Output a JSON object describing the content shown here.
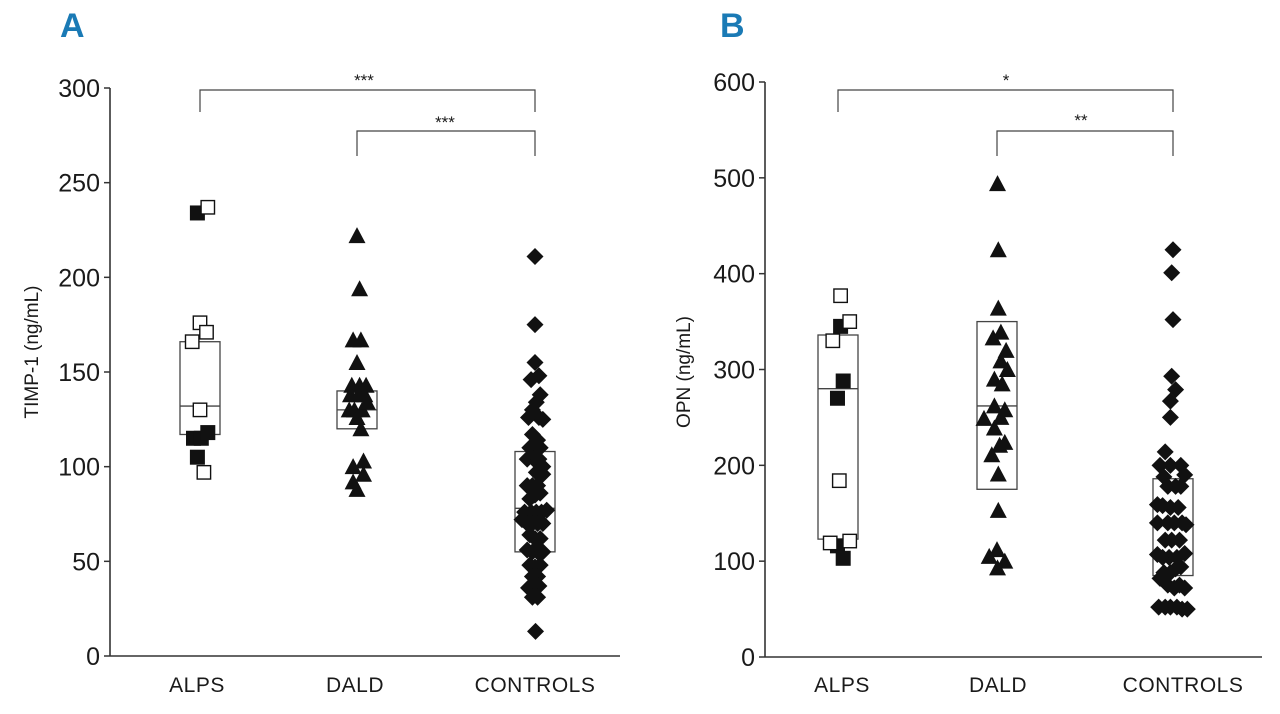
{
  "chart_data": [
    {
      "type": "scatter",
      "panel_label": "A",
      "ylabel": "TIMP-1 (ng/mL)",
      "ylim": [
        0,
        300
      ],
      "yticks": [
        "0",
        "50",
        "100",
        "150",
        "200",
        "250",
        "300"
      ],
      "categories": [
        "ALPS",
        "DALD",
        "CONTROLS"
      ],
      "boxes": [
        {
          "category": "ALPS",
          "low": 117,
          "median": 132,
          "high": 166
        },
        {
          "category": "DALD",
          "low": 120,
          "median": 130,
          "high": 140
        },
        {
          "category": "CONTROLS",
          "low": 55,
          "median": 78,
          "high": 108
        }
      ],
      "significance": [
        {
          "from": "ALPS",
          "to": "CONTROLS",
          "label": "***"
        },
        {
          "from": "DALD",
          "to": "CONTROLS",
          "label": "***"
        }
      ],
      "series": [
        {
          "category": "ALPS",
          "marker": "filled-square",
          "points": [
            [
              -0.1,
              234
            ],
            [
              -0.25,
              115
            ],
            [
              0.05,
              115
            ],
            [
              0.3,
              118
            ],
            [
              -0.1,
              105
            ]
          ]
        },
        {
          "category": "ALPS",
          "marker": "open-square",
          "points": [
            [
              0.3,
              237
            ],
            [
              -0.3,
              166
            ],
            [
              0,
              176
            ],
            [
              0.25,
              171
            ],
            [
              0,
              130
            ],
            [
              0.15,
              97
            ]
          ]
        },
        {
          "category": "DALD",
          "marker": "filled-triangle",
          "points": [
            [
              0,
              222
            ],
            [
              0.1,
              194
            ],
            [
              -0.15,
              167
            ],
            [
              0.15,
              167
            ],
            [
              0,
              155
            ],
            [
              -0.2,
              143
            ],
            [
              0.1,
              143
            ],
            [
              0.35,
              143
            ],
            [
              -0.25,
              138
            ],
            [
              0.05,
              138
            ],
            [
              0.3,
              138
            ],
            [
              -0.1,
              130
            ],
            [
              0.2,
              130
            ],
            [
              0.4,
              134
            ],
            [
              -0.3,
              130
            ],
            [
              0,
              126
            ],
            [
              0.15,
              120
            ],
            [
              -0.15,
              100
            ],
            [
              0.25,
              103
            ],
            [
              -0.15,
              92
            ],
            [
              0.25,
              96
            ],
            [
              0,
              88
            ]
          ]
        },
        {
          "category": "CONTROLS",
          "marker": "filled-diamond",
          "points": [
            [
              0,
              211
            ],
            [
              0,
              175
            ],
            [
              0,
              155
            ],
            [
              0.15,
              148
            ],
            [
              -0.15,
              146
            ],
            [
              0.2,
              138
            ],
            [
              0.05,
              134
            ],
            [
              -0.1,
              130
            ],
            [
              -0.25,
              126
            ],
            [
              0.15,
              126
            ],
            [
              0.3,
              125
            ],
            [
              -0.1,
              117
            ],
            [
              0.1,
              114
            ],
            [
              -0.2,
              110
            ],
            [
              0,
              110
            ],
            [
              0.2,
              110
            ],
            [
              -0.3,
              104
            ],
            [
              -0.05,
              104
            ],
            [
              0.15,
              104
            ],
            [
              0.3,
              100
            ],
            [
              0.05,
              97
            ],
            [
              -0.3,
              90
            ],
            [
              -0.1,
              90
            ],
            [
              0.1,
              90
            ],
            [
              0.3,
              96
            ],
            [
              -0.2,
              83
            ],
            [
              0,
              85
            ],
            [
              0.2,
              86
            ],
            [
              -0.4,
              76
            ],
            [
              -0.15,
              76
            ],
            [
              0.05,
              76
            ],
            [
              0.25,
              76
            ],
            [
              0.45,
              77
            ],
            [
              -0.5,
              72
            ],
            [
              -0.3,
              70
            ],
            [
              -0.1,
              70
            ],
            [
              0.1,
              70
            ],
            [
              0.3,
              70
            ],
            [
              -0.2,
              64
            ],
            [
              0,
              62
            ],
            [
              0.2,
              62
            ],
            [
              -0.3,
              56
            ],
            [
              -0.1,
              55
            ],
            [
              0.1,
              55
            ],
            [
              0.3,
              55
            ],
            [
              -0.2,
              48
            ],
            [
              0,
              47
            ],
            [
              0.2,
              48
            ],
            [
              -0.1,
              42
            ],
            [
              0.1,
              42
            ],
            [
              -0.25,
              36
            ],
            [
              -0.05,
              35
            ],
            [
              0.15,
              37
            ],
            [
              -0.1,
              31
            ],
            [
              0.1,
              31
            ],
            [
              0.02,
              13
            ]
          ]
        }
      ]
    },
    {
      "type": "scatter",
      "panel_label": "B",
      "ylabel": "OPN (ng/mL)",
      "ylim": [
        0,
        600
      ],
      "yticks": [
        "0",
        "100",
        "200",
        "300",
        "400",
        "500",
        "600"
      ],
      "categories": [
        "ALPS",
        "DALD",
        "CONTROLS"
      ],
      "boxes": [
        {
          "category": "ALPS",
          "low": 123,
          "median": 280,
          "high": 336
        },
        {
          "category": "DALD",
          "low": 175,
          "median": 262,
          "high": 350
        },
        {
          "category": "CONTROLS",
          "low": 85,
          "median": 138,
          "high": 186
        }
      ],
      "significance": [
        {
          "from": "ALPS",
          "to": "CONTROLS",
          "label": "*"
        },
        {
          "from": "DALD",
          "to": "CONTROLS",
          "label": "**"
        }
      ],
      "series": [
        {
          "category": "ALPS",
          "marker": "filled-square",
          "points": [
            [
              0.1,
              345
            ],
            [
              0.2,
              288
            ],
            [
              -0.02,
              270
            ],
            [
              -0.02,
              116
            ],
            [
              0.2,
              103
            ]
          ]
        },
        {
          "category": "ALPS",
          "marker": "open-square",
          "points": [
            [
              0.1,
              377
            ],
            [
              0.45,
              350
            ],
            [
              -0.2,
              330
            ],
            [
              0.05,
              184
            ],
            [
              -0.3,
              119
            ],
            [
              0.45,
              121
            ]
          ]
        },
        {
          "category": "DALD",
          "marker": "filled-triangle",
          "points": [
            [
              0.02,
              494
            ],
            [
              0.05,
              425
            ],
            [
              0.05,
              364
            ],
            [
              0.15,
              339
            ],
            [
              -0.15,
              333
            ],
            [
              0.35,
              320
            ],
            [
              0.15,
              309
            ],
            [
              -0.1,
              290
            ],
            [
              0.2,
              285
            ],
            [
              0.4,
              300
            ],
            [
              -0.1,
              262
            ],
            [
              0.3,
              258
            ],
            [
              -0.5,
              249
            ],
            [
              0.15,
              250
            ],
            [
              -0.1,
              239
            ],
            [
              0.3,
              224
            ],
            [
              0.1,
              221
            ],
            [
              -0.2,
              211
            ],
            [
              0.05,
              191
            ],
            [
              0.05,
              153
            ],
            [
              0,
              112
            ],
            [
              -0.3,
              105
            ],
            [
              0.3,
              100
            ],
            [
              0.02,
              93
            ]
          ]
        },
        {
          "category": "CONTROLS",
          "marker": "filled-diamond",
          "points": [
            [
              0,
              425
            ],
            [
              -0.05,
              401
            ],
            [
              0,
              352
            ],
            [
              -0.05,
              293
            ],
            [
              0.1,
              279
            ],
            [
              -0.1,
              267
            ],
            [
              -0.1,
              250
            ],
            [
              -0.3,
              214
            ],
            [
              -0.5,
              200
            ],
            [
              -0.1,
              200
            ],
            [
              0.3,
              200
            ],
            [
              -0.35,
              188
            ],
            [
              0.45,
              190
            ],
            [
              -0.2,
              178
            ],
            [
              0.1,
              178
            ],
            [
              0.3,
              178
            ],
            [
              -0.6,
              159
            ],
            [
              -0.4,
              158
            ],
            [
              -0.1,
              156
            ],
            [
              0.2,
              156
            ],
            [
              -0.6,
              140
            ],
            [
              -0.2,
              140
            ],
            [
              0.05,
              140
            ],
            [
              0.35,
              140
            ],
            [
              0.5,
              138
            ],
            [
              -0.3,
              122
            ],
            [
              -0.05,
              122
            ],
            [
              0.25,
              122
            ],
            [
              -0.6,
              107
            ],
            [
              -0.4,
              104
            ],
            [
              -0.15,
              104
            ],
            [
              0.15,
              104
            ],
            [
              0.45,
              108
            ],
            [
              -0.35,
              88
            ],
            [
              -0.1,
              88
            ],
            [
              0.1,
              92
            ],
            [
              0.3,
              94
            ],
            [
              -0.5,
              82
            ],
            [
              -0.2,
              75
            ],
            [
              0.05,
              72
            ],
            [
              0.25,
              75
            ],
            [
              0.45,
              72
            ],
            [
              -0.55,
              52
            ],
            [
              -0.3,
              52
            ],
            [
              -0.1,
              52
            ],
            [
              0.15,
              52
            ],
            [
              0.35,
              50
            ],
            [
              0.55,
              50
            ]
          ]
        }
      ]
    }
  ]
}
